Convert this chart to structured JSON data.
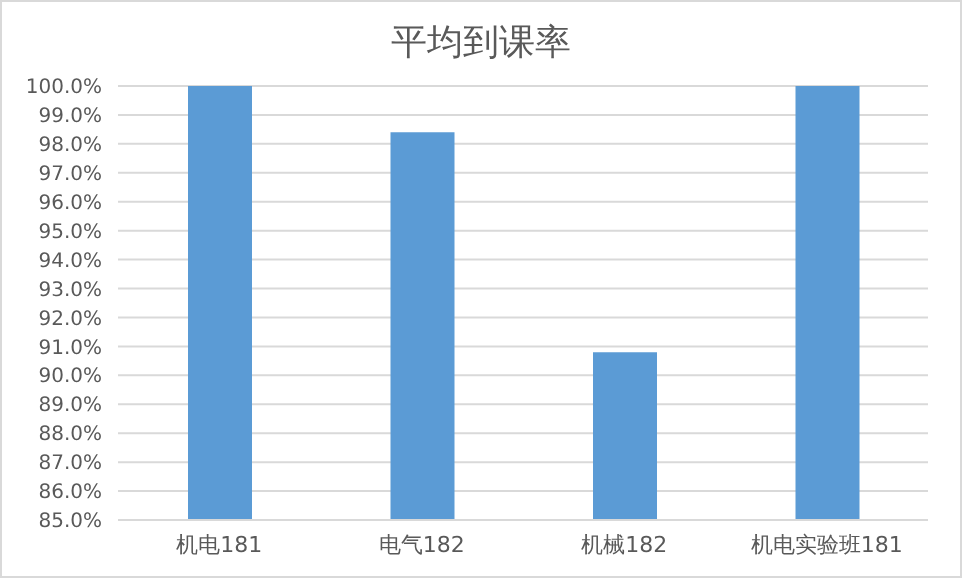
{
  "chart_data": {
    "type": "bar",
    "title": "平均到课率",
    "categories": [
      "机电181",
      "电气182",
      "机械182",
      "机电实验班181"
    ],
    "values": [
      100,
      98.4,
      90.8,
      100
    ],
    "color": "#5b9bd5",
    "ylim": [
      85,
      100
    ],
    "yticks": [
      {
        "value": 85,
        "label": "85.0%"
      },
      {
        "value": 86,
        "label": "86.0%"
      },
      {
        "value": 87,
        "label": "87.0%"
      },
      {
        "value": 88,
        "label": "88.0%"
      },
      {
        "value": 89,
        "label": "89.0%"
      },
      {
        "value": 90,
        "label": "90.0%"
      },
      {
        "value": 91,
        "label": "91.0%"
      },
      {
        "value": 92,
        "label": "92.0%"
      },
      {
        "value": 93,
        "label": "93.0%"
      },
      {
        "value": 94,
        "label": "94.0%"
      },
      {
        "value": 95,
        "label": "95.0%"
      },
      {
        "value": 96,
        "label": "96.0%"
      },
      {
        "value": 97,
        "label": "97.0%"
      },
      {
        "value": 98,
        "label": "98.0%"
      },
      {
        "value": 99,
        "label": "99.0%"
      },
      {
        "value": 100,
        "label": "100.0%"
      }
    ],
    "grid": "y"
  }
}
